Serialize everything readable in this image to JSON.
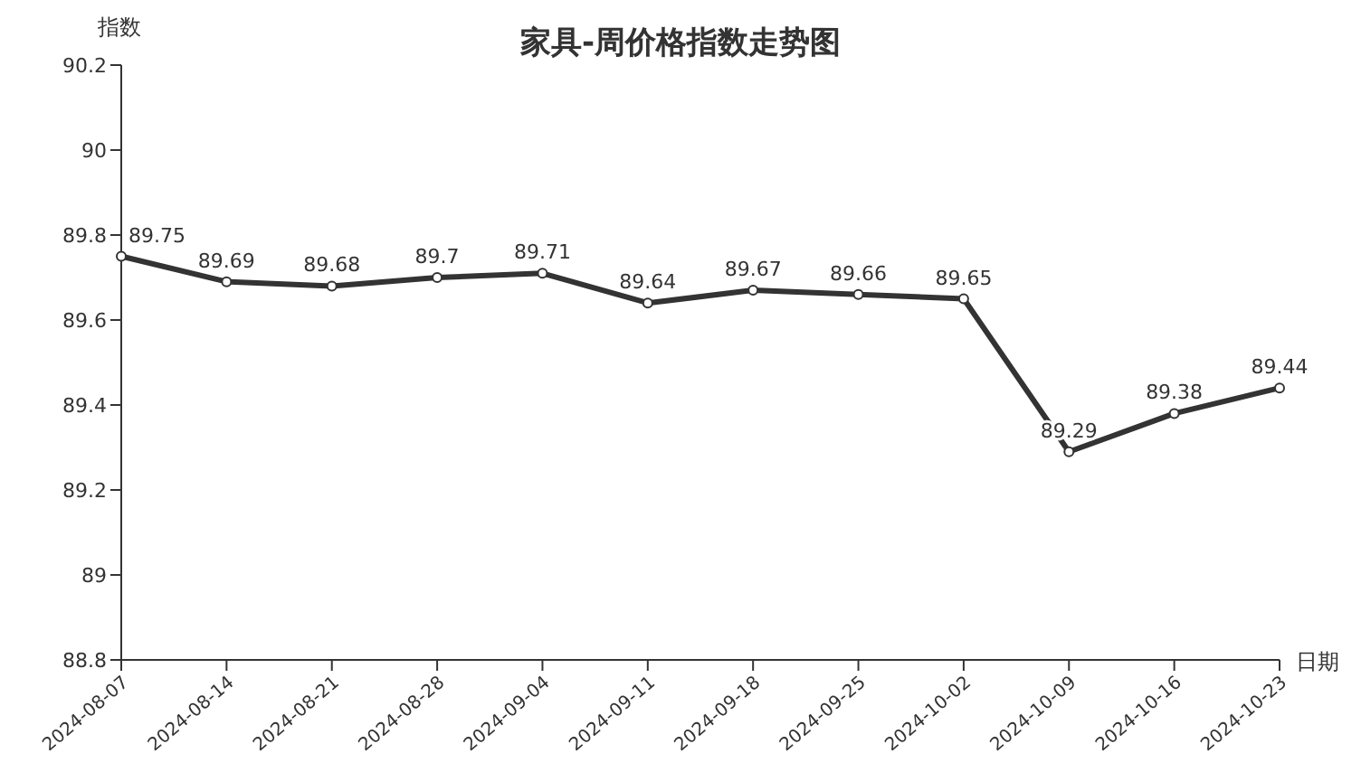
{
  "chart_data": {
    "type": "line",
    "title": "家具-周价格指数走势图",
    "xlabel": "日期",
    "ylabel": "指数",
    "categories": [
      "2024-08-07",
      "2024-08-14",
      "2024-08-21",
      "2024-08-28",
      "2024-09-04",
      "2024-09-11",
      "2024-09-18",
      "2024-09-25",
      "2024-10-02",
      "2024-10-09",
      "2024-10-16",
      "2024-10-23"
    ],
    "series": [
      {
        "color": "#333333",
        "values": [
          89.75,
          89.69,
          89.68,
          89.7,
          89.71,
          89.64,
          89.67,
          89.66,
          89.65,
          89.29,
          89.38,
          89.44
        ]
      }
    ],
    "ylim": [
      88.8,
      90.2
    ],
    "yticks": [
      88.8,
      89,
      89.2,
      89.4,
      89.6,
      89.8,
      90,
      90.2
    ],
    "grid": false,
    "legend": false,
    "marker": "circle",
    "line_style": "solid",
    "data_labels": true
  }
}
